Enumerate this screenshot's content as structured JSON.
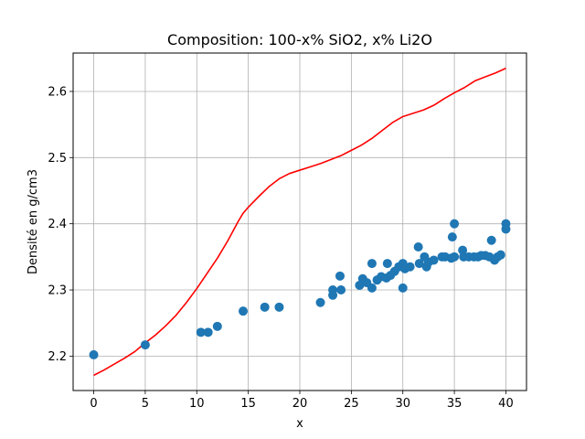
{
  "chart_data": {
    "type": "scatter",
    "title": "Composition: 100-x% SiO2, x% Li2O",
    "xlabel": "x",
    "ylabel": "Densité en g/cm3",
    "xlim": [
      -2,
      42
    ],
    "ylim": [
      2.148,
      2.658
    ],
    "xticks": [
      0,
      5,
      10,
      15,
      20,
      25,
      30,
      35,
      40
    ],
    "xtick_labels": [
      "0",
      "5",
      "10",
      "15",
      "20",
      "25",
      "30",
      "35",
      "40"
    ],
    "yticks": [
      2.2,
      2.3,
      2.4,
      2.5,
      2.6
    ],
    "ytick_labels": [
      "2.2",
      "2.3",
      "2.4",
      "2.5",
      "2.6"
    ],
    "grid": true,
    "colors": {
      "points": "#1f77b4",
      "line": "#ff0000",
      "grid": "#b0b0b0"
    },
    "series": [
      {
        "type": "scatter",
        "points": [
          [
            0,
            2.202
          ],
          [
            5,
            2.217
          ],
          [
            10.4,
            2.236
          ],
          [
            11.1,
            2.236
          ],
          [
            12,
            2.245
          ],
          [
            14.5,
            2.268
          ],
          [
            16.6,
            2.274
          ],
          [
            18,
            2.274
          ],
          [
            22,
            2.281
          ],
          [
            23.2,
            2.292
          ],
          [
            23.2,
            2.3
          ],
          [
            23.9,
            2.321
          ],
          [
            24,
            2.3
          ],
          [
            25.8,
            2.307
          ],
          [
            26.1,
            2.317
          ],
          [
            26.5,
            2.311
          ],
          [
            27,
            2.34
          ],
          [
            27,
            2.303
          ],
          [
            27.5,
            2.315
          ],
          [
            27.9,
            2.32
          ],
          [
            28.4,
            2.318
          ],
          [
            28.5,
            2.34
          ],
          [
            28.8,
            2.322
          ],
          [
            29.2,
            2.328
          ],
          [
            29.6,
            2.335
          ],
          [
            30,
            2.303
          ],
          [
            30,
            2.34
          ],
          [
            30.2,
            2.332
          ],
          [
            30.7,
            2.335
          ],
          [
            31.5,
            2.365
          ],
          [
            31.6,
            2.34
          ],
          [
            32.1,
            2.35
          ],
          [
            32.3,
            2.335
          ],
          [
            32.5,
            2.342
          ],
          [
            33,
            2.345
          ],
          [
            33.8,
            2.35
          ],
          [
            34.1,
            2.35
          ],
          [
            34.7,
            2.348
          ],
          [
            34.8,
            2.38
          ],
          [
            35,
            2.4
          ],
          [
            35,
            2.35
          ],
          [
            35.8,
            2.36
          ],
          [
            35.9,
            2.35
          ],
          [
            36.4,
            2.35
          ],
          [
            36.9,
            2.35
          ],
          [
            37.3,
            2.35
          ],
          [
            37.6,
            2.352
          ],
          [
            38,
            2.352
          ],
          [
            38.4,
            2.35
          ],
          [
            38.6,
            2.375
          ],
          [
            38.9,
            2.345
          ],
          [
            39.2,
            2.35
          ],
          [
            39.5,
            2.353
          ],
          [
            40,
            2.4
          ],
          [
            40,
            2.392
          ]
        ]
      },
      {
        "type": "line",
        "points": [
          [
            0,
            2.171
          ],
          [
            1,
            2.179
          ],
          [
            2,
            2.188
          ],
          [
            3,
            2.197
          ],
          [
            4,
            2.207
          ],
          [
            5,
            2.22
          ],
          [
            6,
            2.232
          ],
          [
            7,
            2.246
          ],
          [
            8,
            2.262
          ],
          [
            9,
            2.281
          ],
          [
            10,
            2.302
          ],
          [
            11,
            2.325
          ],
          [
            12,
            2.348
          ],
          [
            13,
            2.374
          ],
          [
            14,
            2.403
          ],
          [
            14.5,
            2.416
          ],
          [
            15,
            2.425
          ],
          [
            16,
            2.441
          ],
          [
            17,
            2.456
          ],
          [
            18,
            2.468
          ],
          [
            19,
            2.476
          ],
          [
            20,
            2.481
          ],
          [
            21,
            2.486
          ],
          [
            22,
            2.491
          ],
          [
            23,
            2.497
          ],
          [
            24,
            2.503
          ],
          [
            25,
            2.511
          ],
          [
            26,
            2.519
          ],
          [
            27,
            2.529
          ],
          [
            28,
            2.541
          ],
          [
            29,
            2.553
          ],
          [
            30,
            2.562
          ],
          [
            31,
            2.567
          ],
          [
            32,
            2.572
          ],
          [
            33,
            2.579
          ],
          [
            34,
            2.589
          ],
          [
            35,
            2.598
          ],
          [
            36,
            2.606
          ],
          [
            37,
            2.616
          ],
          [
            38,
            2.622
          ],
          [
            39,
            2.628
          ],
          [
            40,
            2.635
          ]
        ]
      }
    ]
  }
}
